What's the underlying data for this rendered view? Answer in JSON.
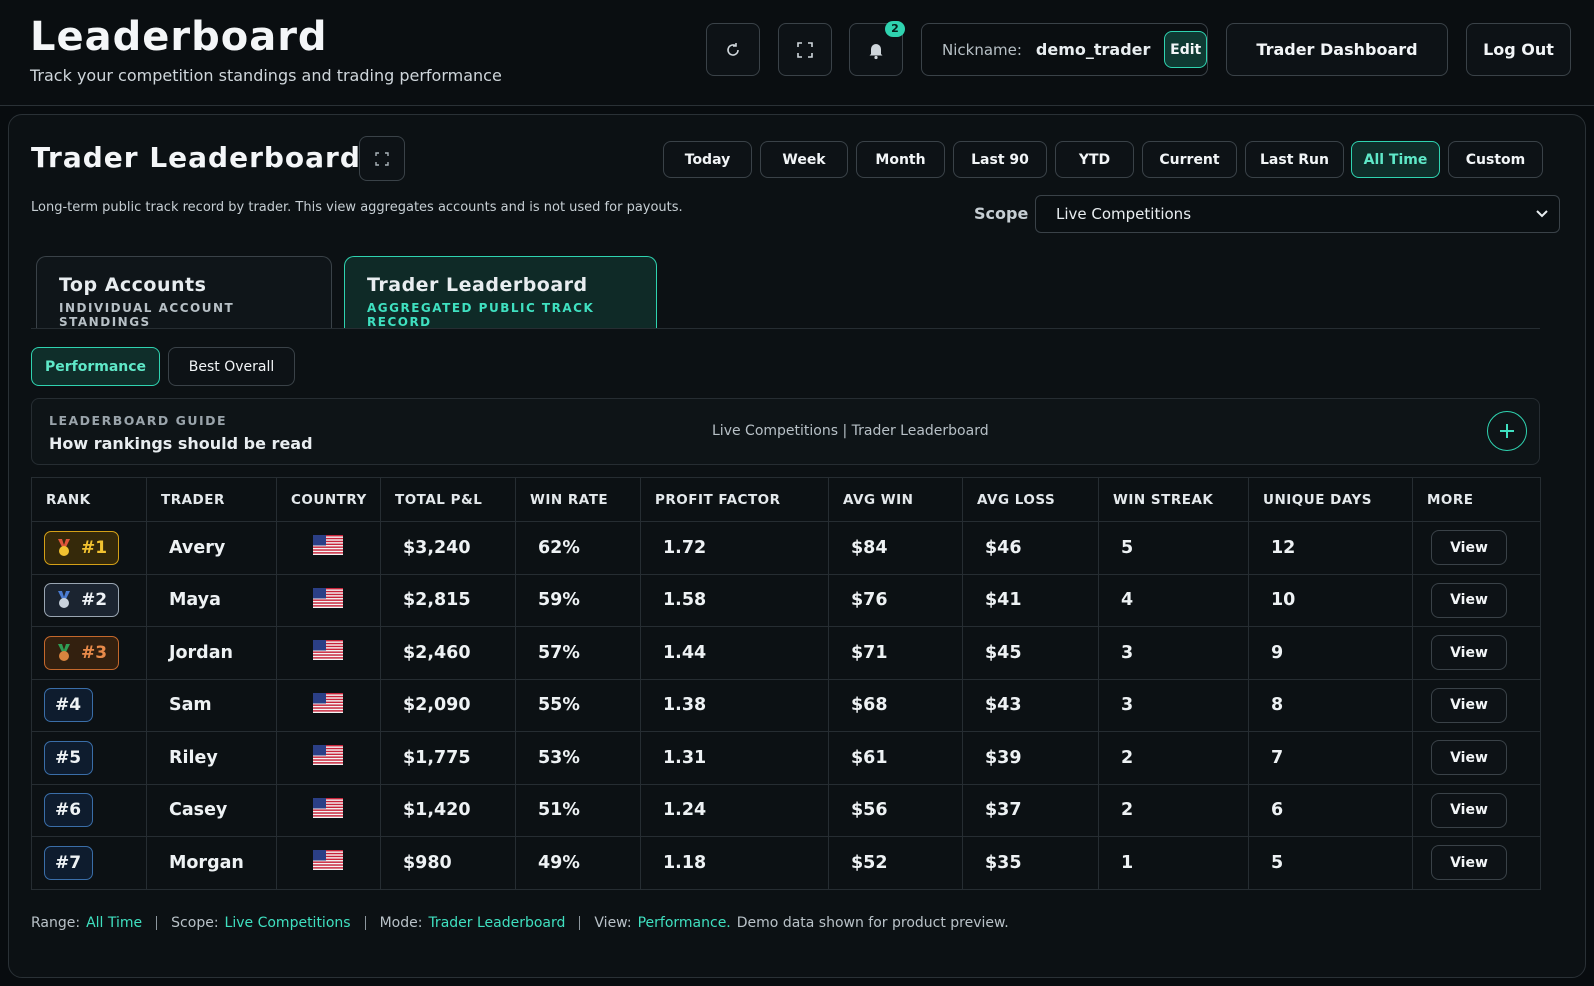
{
  "header": {
    "title": "Leaderboard",
    "subtitle": "Track your competition standings and trading performance",
    "notification_count": "2",
    "nickname_label": "Nickname:",
    "nickname": "demo_trader",
    "edit": "Edit",
    "dashboard": "Trader Dashboard",
    "logout": "Log Out"
  },
  "panel": {
    "title": "Trader Leaderboard",
    "description": "Long-term public track record by trader. This view aggregates accounts and is not used for payouts.",
    "ranges": [
      "Today",
      "Week",
      "Month",
      "Last 90",
      "YTD",
      "Current",
      "Last Run",
      "All Time",
      "Custom"
    ],
    "scope_label": "Scope",
    "scope": "Live Competitions",
    "tabs": [
      {
        "title": "Top Accounts",
        "subtitle": "INDIVIDUAL ACCOUNT STANDINGS"
      },
      {
        "title": "Trader Leaderboard",
        "subtitle": "AGGREGATED PUBLIC TRACK RECORD"
      }
    ],
    "views": [
      "Performance",
      "Best Overall"
    ],
    "guide": {
      "label": "LEADERBOARD GUIDE",
      "title": "How rankings should be read",
      "context": "Live Competitions | Trader Leaderboard"
    }
  },
  "table": {
    "columns": [
      "RANK",
      "TRADER",
      "COUNTRY",
      "TOTAL P&L",
      "WIN RATE",
      "PROFIT FACTOR",
      "AVG WIN",
      "AVG LOSS",
      "WIN STREAK",
      "UNIQUE DAYS",
      "MORE"
    ],
    "rows": [
      {
        "rank": "#1",
        "trader": "Avery",
        "stats": [
          "$3,240",
          "62%",
          "1.72",
          "$84",
          "$46",
          "5",
          "12"
        ],
        "action": "View"
      },
      {
        "rank": "#2",
        "trader": "Maya",
        "stats": [
          "$2,815",
          "59%",
          "1.58",
          "$76",
          "$41",
          "4",
          "10"
        ],
        "action": "View"
      },
      {
        "rank": "#3",
        "trader": "Jordan",
        "stats": [
          "$2,460",
          "57%",
          "1.44",
          "$71",
          "$45",
          "3",
          "9"
        ],
        "action": "View"
      },
      {
        "rank": "#4",
        "trader": "Sam",
        "stats": [
          "$2,090",
          "55%",
          "1.38",
          "$68",
          "$43",
          "3",
          "8"
        ],
        "action": "View"
      },
      {
        "rank": "#5",
        "trader": "Riley",
        "stats": [
          "$1,775",
          "53%",
          "1.31",
          "$61",
          "$39",
          "2",
          "7"
        ],
        "action": "View"
      },
      {
        "rank": "#6",
        "trader": "Casey",
        "stats": [
          "$1,420",
          "51%",
          "1.24",
          "$56",
          "$37",
          "2",
          "6"
        ],
        "action": "View"
      },
      {
        "rank": "#7",
        "trader": "Morgan",
        "stats": [
          "$980",
          "49%",
          "1.18",
          "$52",
          "$35",
          "1",
          "5"
        ],
        "action": "View"
      }
    ]
  },
  "footer": {
    "items": [
      {
        "label": "Range:",
        "value": "All Time"
      },
      {
        "label": "Scope:",
        "value": "Live Competitions"
      },
      {
        "label": "Mode:",
        "value": "Trader Leaderboard"
      },
      {
        "label": "View:",
        "value": "Performance."
      }
    ],
    "note": "Demo data shown for product preview."
  }
}
